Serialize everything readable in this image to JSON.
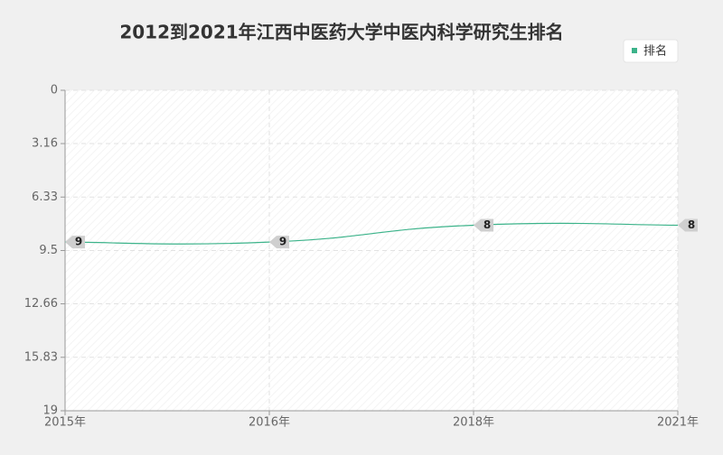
{
  "chart_data": {
    "type": "line",
    "title": "2012到2021年江西中医药大学中医内科学研究生排名",
    "categories": [
      "2015年",
      "2016年",
      "2018年",
      "2021年"
    ],
    "series": [
      {
        "name": "排名",
        "color": "#3cb38a",
        "values": [
          9,
          9,
          8,
          8
        ]
      }
    ],
    "ylim": [
      0,
      19
    ],
    "y_inverted": true,
    "yticks": [
      0,
      3.16,
      6.33,
      9.5,
      12.66,
      15.83,
      19
    ],
    "grid": true,
    "legend": "top-right",
    "data_labels": true
  }
}
